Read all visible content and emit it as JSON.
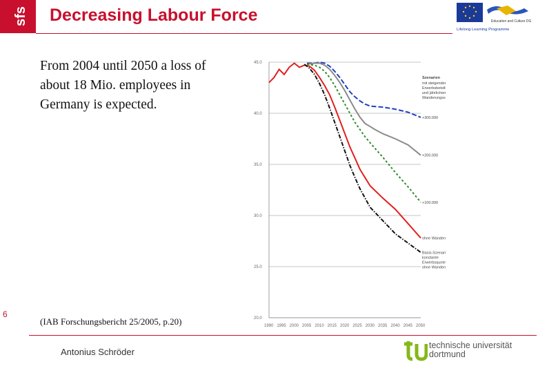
{
  "header": {
    "logo_text": "sfs",
    "title": "Decreasing Labour Force",
    "eu_logo": {
      "caption_top": "Education and Culture DG",
      "caption_bottom": "Lifelong Learning Programme"
    }
  },
  "body": {
    "intro": "From 2004 until 2050 a loss of about 18 Mio. employees in Germany is expected.",
    "citation": "(IAB Forschungsbericht 25/2005, p.20)"
  },
  "footer": {
    "page_number": "6",
    "author": "Antonius Schröder",
    "tu_logo_text_line1": "technische universität",
    "tu_logo_text_line2": "dortmund"
  },
  "colors": {
    "brand_red": "#c8102e",
    "tu_green": "#84b819"
  },
  "chart_data": {
    "type": "line",
    "xlabel": "",
    "ylabel": "",
    "x_ticks": [
      "1990",
      "1995",
      "2000",
      "2005",
      "2010",
      "2015",
      "2020",
      "2025",
      "2030",
      "2035",
      "2040",
      "2045",
      "2050"
    ],
    "y_ticks": [
      "20.0",
      "25.0",
      "30.0",
      "35.0",
      "40.0",
      "45.0"
    ],
    "ylim": [
      20,
      45
    ],
    "xlim": [
      1990,
      2050
    ],
    "grid": true,
    "legend_title": "Szenarien",
    "legend_subtitle": "mit steigender Erwerbsbeteiligung und jährlichem Wanderungssaldo",
    "series": [
      {
        "name": "+300.000",
        "color": "#1f3fbf",
        "style": "dashed",
        "x": [
          2005,
          2008,
          2010,
          2012,
          2014,
          2016,
          2018,
          2020,
          2022,
          2024,
          2026,
          2028,
          2030,
          2035,
          2040,
          2045,
          2050
        ],
        "y": [
          44.9,
          44.9,
          45.0,
          44.9,
          44.6,
          44.1,
          43.5,
          42.8,
          42.1,
          41.6,
          41.2,
          40.9,
          40.7,
          40.6,
          40.4,
          40.1,
          39.6
        ]
      },
      {
        "name": "+200.000",
        "color": "#8a8a8a",
        "style": "solid",
        "x": [
          2005,
          2008,
          2010,
          2012,
          2014,
          2016,
          2018,
          2020,
          2022,
          2024,
          2026,
          2028,
          2030,
          2032,
          2035,
          2040,
          2045,
          2050
        ],
        "y": [
          44.8,
          44.9,
          44.9,
          44.7,
          44.3,
          43.7,
          43.0,
          42.2,
          41.3,
          40.4,
          39.6,
          39.0,
          38.7,
          38.4,
          38.0,
          37.5,
          36.9,
          35.9
        ]
      },
      {
        "name": "+100.000",
        "color": "#2e8b2e",
        "style": "dotted",
        "x": [
          2005,
          2008,
          2010,
          2012,
          2014,
          2016,
          2018,
          2020,
          2022,
          2024,
          2026,
          2028,
          2030,
          2035,
          2040,
          2045,
          2050
        ],
        "y": [
          44.8,
          44.7,
          44.5,
          44.1,
          43.5,
          42.7,
          41.8,
          40.9,
          40.0,
          39.1,
          38.4,
          37.7,
          37.1,
          35.7,
          34.2,
          32.8,
          31.3
        ]
      },
      {
        "name": "ohne Wanderungen",
        "color": "#e0201c",
        "style": "solid",
        "x": [
          1990,
          1992,
          1994,
          1996,
          1998,
          2000,
          2002,
          2004,
          2006,
          2008,
          2010,
          2012,
          2014,
          2016,
          2018,
          2020,
          2022,
          2024,
          2026,
          2028,
          2030,
          2035,
          2040,
          2045,
          2050
        ],
        "y": [
          43.0,
          43.5,
          44.3,
          43.8,
          44.5,
          44.9,
          44.5,
          44.7,
          44.6,
          44.2,
          43.5,
          42.7,
          41.8,
          40.6,
          39.3,
          38.0,
          36.7,
          35.6,
          34.5,
          33.7,
          32.9,
          31.7,
          30.6,
          29.2,
          27.8
        ]
      },
      {
        "name": "Basis-Szenario konstante Erwerbsquoten ohne Wanderungen",
        "color": "#111111",
        "style": "dashdot",
        "x": [
          2004,
          2006,
          2008,
          2010,
          2012,
          2014,
          2016,
          2018,
          2020,
          2022,
          2024,
          2026,
          2028,
          2030,
          2035,
          2040,
          2045,
          2050
        ],
        "y": [
          44.8,
          44.4,
          43.8,
          42.9,
          41.8,
          40.5,
          39.1,
          37.7,
          36.3,
          34.9,
          33.7,
          32.6,
          31.7,
          30.8,
          29.5,
          28.2,
          27.3,
          26.4
        ]
      }
    ]
  }
}
